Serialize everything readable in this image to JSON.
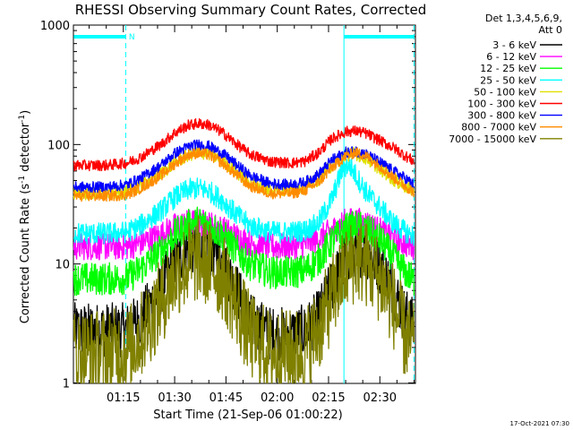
{
  "chart_data": {
    "type": "line",
    "title": "RHESSI Observing Summary Count Rates, Corrected",
    "xlabel": "Start Time (21-Sep-06 01:00:22)",
    "ylabel": "Corrected Count Rate (s⁻¹ detector⁻¹)",
    "ylabel_parts": [
      "Corrected Count Rate (s",
      "-1",
      " detector",
      "-1",
      ")"
    ],
    "y_scale": "log",
    "ylim": [
      1,
      1000
    ],
    "xlim_minutes": [
      0.4,
      100.4
    ],
    "x_ticks": [
      {
        "label": "01:15",
        "minutes": 15
      },
      {
        "label": "01:30",
        "minutes": 30
      },
      {
        "label": "01:45",
        "minutes": 45
      },
      {
        "label": "02:00",
        "minutes": 60
      },
      {
        "label": "02:15",
        "minutes": 75
      },
      {
        "label": "02:30",
        "minutes": 90
      }
    ],
    "y_ticks": [
      {
        "label": "1000",
        "value": 1000
      },
      {
        "label": "100",
        "value": 100
      },
      {
        "label": "10",
        "value": 10
      },
      {
        "label": "1",
        "value": 1
      }
    ],
    "grid": false,
    "legend_header": [
      "Det 1,3,4,5,6,9,",
      "Att 0"
    ],
    "legend_position": "top-right",
    "series": [
      {
        "name": "3 - 6 keV",
        "color": "#000000",
        "x": [
          0.5,
          10,
          16,
          20,
          26,
          30,
          34,
          37,
          40,
          44,
          48,
          52,
          58,
          64,
          68,
          72,
          76,
          80,
          83,
          86,
          90,
          94,
          97,
          100
        ],
        "y": [
          2.8,
          2.8,
          2.8,
          3.4,
          6.2,
          10.5,
          13.5,
          14.5,
          13.8,
          10.5,
          6.2,
          3.4,
          2.6,
          2.6,
          2.7,
          3.6,
          6.6,
          11.2,
          13.2,
          12.8,
          9.6,
          6.1,
          3.9,
          3.0
        ],
        "noise": 0.1
      },
      {
        "name": "6 - 12 keV",
        "color": "#ff00ff",
        "x": [
          0.5,
          10,
          16,
          20,
          26,
          30,
          34,
          37,
          40,
          44,
          48,
          52,
          58,
          64,
          68,
          72,
          76,
          80,
          83,
          86,
          90,
          94,
          97,
          100
        ],
        "y": [
          14,
          14,
          14,
          15,
          17.5,
          20.5,
          22,
          22.5,
          21.5,
          19.5,
          17,
          15,
          14,
          14,
          14.5,
          16,
          19,
          22.5,
          23,
          22,
          19,
          16.5,
          15,
          14
        ],
        "noise": 0.05
      },
      {
        "name": "12 - 25 keV",
        "color": "#00ff00",
        "x": [
          0.5,
          10,
          16,
          20,
          26,
          30,
          34,
          37,
          40,
          44,
          48,
          52,
          58,
          64,
          68,
          72,
          76,
          80,
          83,
          86,
          90,
          94,
          97,
          100
        ],
        "y": [
          7.5,
          7.5,
          7.6,
          9,
          13,
          17.5,
          21,
          22.5,
          21,
          17.5,
          13,
          10,
          8.5,
          8.5,
          8.8,
          10.8,
          15.5,
          19.5,
          20.5,
          19.5,
          16,
          11.5,
          8.8,
          7.2
        ],
        "noise": 0.06
      },
      {
        "name": "25 - 50 keV",
        "color": "#00ffff",
        "x": [
          0.5,
          10,
          16,
          20,
          26,
          30,
          34,
          37,
          40,
          44,
          48,
          52,
          58,
          64,
          68,
          72,
          76,
          79,
          81,
          83,
          86,
          90,
          94,
          97,
          100
        ],
        "y": [
          18,
          18,
          18.5,
          21,
          28,
          36,
          42,
          43,
          41,
          34,
          26,
          21,
          18.5,
          18.5,
          19,
          22,
          35,
          62,
          68,
          55,
          40,
          30,
          22,
          19,
          17
        ],
        "noise": 0.04
      },
      {
        "name": "50 - 100 keV",
        "color": "#e0e000",
        "x": [
          0.5,
          10,
          16,
          20,
          26,
          30,
          34,
          37,
          40,
          44,
          48,
          52,
          58,
          64,
          68,
          72,
          76,
          80,
          83,
          86,
          90,
          94,
          97,
          100
        ],
        "y": [
          39,
          39,
          40,
          45,
          57,
          70,
          82,
          86,
          84,
          73,
          59,
          48,
          42,
          42,
          44,
          51,
          67,
          82,
          84,
          77,
          63,
          51,
          45,
          41
        ],
        "noise": 0.025
      },
      {
        "name": "100 - 300 keV",
        "color": "#ff0000",
        "x": [
          0.5,
          10,
          16,
          20,
          26,
          30,
          34,
          37,
          40,
          44,
          48,
          52,
          58,
          64,
          68,
          72,
          76,
          80,
          83,
          86,
          90,
          94,
          97,
          100
        ],
        "y": [
          67,
          67,
          70,
          78,
          100,
          125,
          145,
          150,
          146,
          126,
          101,
          83,
          72,
          70,
          72,
          85,
          112,
          128,
          130,
          124,
          108,
          94,
          82,
          72
        ],
        "noise": 0.02
      },
      {
        "name": "300 - 800 keV",
        "color": "#0000ff",
        "x": [
          0.5,
          10,
          16,
          20,
          26,
          30,
          34,
          37,
          40,
          44,
          48,
          52,
          58,
          64,
          68,
          72,
          76,
          80,
          83,
          86,
          90,
          94,
          97,
          100
        ],
        "y": [
          44,
          44,
          46,
          52,
          67,
          84,
          96,
          100,
          97,
          84,
          68,
          55,
          47,
          46,
          48,
          56,
          74,
          86,
          88,
          83,
          71,
          60,
          53,
          46
        ],
        "noise": 0.02
      },
      {
        "name": "800 - 7000 keV",
        "color": "#ff8c00",
        "x": [
          0.5,
          10,
          16,
          20,
          26,
          30,
          34,
          37,
          40,
          44,
          48,
          52,
          58,
          64,
          68,
          72,
          76,
          80,
          83,
          86,
          90,
          94,
          97,
          100
        ],
        "y": [
          37,
          37,
          38,
          43,
          55,
          69,
          82,
          85,
          82,
          70,
          56,
          45,
          39,
          39,
          41,
          48,
          64,
          80,
          86,
          80,
          66,
          53,
          46,
          40
        ],
        "noise": 0.02
      },
      {
        "name": "7000 - 15000 keV",
        "color": "#808000",
        "x": [
          0.5,
          10,
          16,
          20,
          26,
          30,
          34,
          37,
          40,
          44,
          48,
          52,
          58,
          64,
          68,
          72,
          76,
          80,
          83,
          86,
          90,
          94,
          97,
          100
        ],
        "y": [
          1.8,
          1.8,
          1.9,
          2.5,
          4.8,
          8,
          10,
          11,
          10,
          7.8,
          4.6,
          2.5,
          1.8,
          1.8,
          1.9,
          2.8,
          5.2,
          9,
          11,
          10,
          7.5,
          4.5,
          2.6,
          2.0
        ],
        "noise": 0.16
      }
    ],
    "flag_segments": [
      {
        "label": "",
        "start": 0.5,
        "end": 15.7
      },
      {
        "label": "",
        "start": 79.5,
        "end": 100
      }
    ],
    "flag_letter": "N",
    "flag_letter_x": 16.6,
    "markers": [
      {
        "x": 15.7,
        "style": "dashed"
      },
      {
        "x": 79.5,
        "style": "solid"
      },
      {
        "x": 100,
        "style": "dashed"
      }
    ],
    "accent_color": "#00ffff"
  },
  "footer": {
    "timestamp": "17-Oct-2021 07:30"
  }
}
